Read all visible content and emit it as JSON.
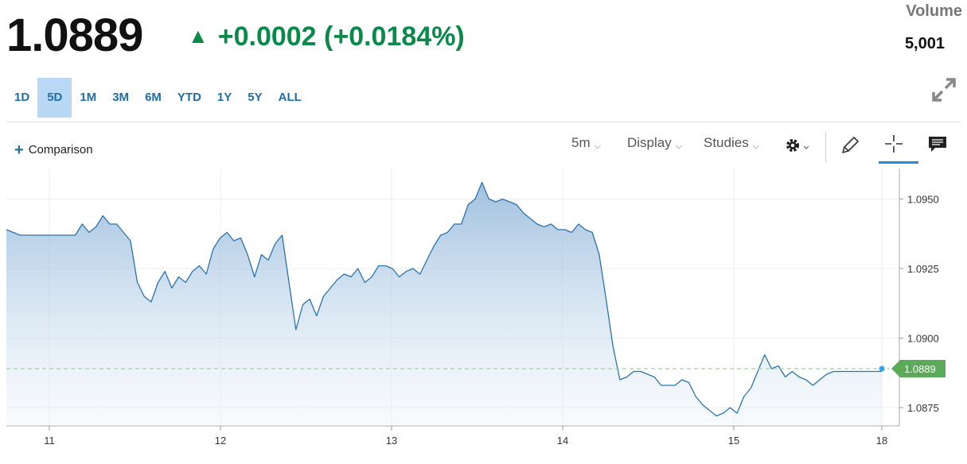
{
  "quote": {
    "price": "1.0889",
    "change": "+0.0002 (+0.0184%)",
    "volume_label": "Volume",
    "volume_value": "5,001"
  },
  "ranges": [
    "1D",
    "5D",
    "1M",
    "3M",
    "6M",
    "YTD",
    "1Y",
    "5Y",
    "ALL"
  ],
  "active_range": "5D",
  "toolbar": {
    "comparison_label": "Comparison",
    "interval_label": "5m",
    "display_label": "Display",
    "studies_label": "Studies"
  },
  "icons": [
    "expand-icon",
    "chevron-down-icon",
    "gear-icon",
    "pencil-icon",
    "crosshair-icon",
    "comment-icon",
    "plus-icon",
    "up-arrow-icon"
  ],
  "colors": {
    "line": "#2874b0",
    "positive": "#0a8a4a",
    "tag": "#5aaa5a",
    "active_range_bg": "#b9d8f5"
  },
  "chart_data": {
    "type": "area",
    "x_tick_labels": [
      "11",
      "12",
      "13",
      "14",
      "15",
      "18"
    ],
    "y_tick_labels": [
      "1.0950",
      "1.0925",
      "1.0900",
      "1.0875"
    ],
    "ylim": [
      1.0869,
      1.0961
    ],
    "last_value_label": "1.0889",
    "grid": true,
    "series": [
      {
        "points": [
          [
            0,
            1.0939
          ],
          [
            1,
            1.0938
          ],
          [
            2,
            1.0937
          ],
          [
            3,
            1.0937
          ],
          [
            4,
            1.0937
          ],
          [
            5,
            1.0937
          ],
          [
            6,
            1.0937
          ],
          [
            7,
            1.0937
          ],
          [
            8,
            1.0937
          ],
          [
            9,
            1.0937
          ],
          [
            10,
            1.0937
          ],
          [
            11,
            1.0941
          ],
          [
            12,
            1.0938
          ],
          [
            13,
            1.094
          ],
          [
            14,
            1.0944
          ],
          [
            15,
            1.0941
          ],
          [
            16,
            1.0941
          ],
          [
            17,
            1.0938
          ],
          [
            18,
            1.0935
          ],
          [
            19,
            1.092
          ],
          [
            20,
            1.0915
          ],
          [
            21,
            1.0913
          ],
          [
            22,
            1.092
          ],
          [
            23,
            1.0924
          ],
          [
            24,
            1.0918
          ],
          [
            25,
            1.0922
          ],
          [
            26,
            1.092
          ],
          [
            27,
            1.0924
          ],
          [
            28,
            1.0926
          ],
          [
            29,
            1.0923
          ],
          [
            30,
            1.0932
          ],
          [
            31,
            1.0936
          ],
          [
            32,
            1.0938
          ],
          [
            33,
            1.0935
          ],
          [
            34,
            1.0936
          ],
          [
            35,
            1.093
          ],
          [
            36,
            1.0922
          ],
          [
            37,
            1.093
          ],
          [
            38,
            1.0928
          ],
          [
            39,
            1.0934
          ],
          [
            40,
            1.0937
          ],
          [
            41,
            1.092
          ],
          [
            42,
            1.0903
          ],
          [
            43,
            1.0912
          ],
          [
            44,
            1.0914
          ],
          [
            45,
            1.0908
          ],
          [
            46,
            1.0915
          ],
          [
            47,
            1.0918
          ],
          [
            48,
            1.0921
          ],
          [
            49,
            1.0923
          ],
          [
            50,
            1.0922
          ],
          [
            51,
            1.0925
          ],
          [
            52,
            1.092
          ],
          [
            53,
            1.0922
          ],
          [
            54,
            1.0926
          ],
          [
            55,
            1.0926
          ],
          [
            56,
            1.0925
          ],
          [
            57,
            1.0922
          ],
          [
            58,
            1.0924
          ],
          [
            59,
            1.0925
          ],
          [
            60,
            1.0923
          ],
          [
            61,
            1.0928
          ],
          [
            62,
            1.0933
          ],
          [
            63,
            1.0937
          ],
          [
            64,
            1.0938
          ],
          [
            65,
            1.0941
          ],
          [
            66,
            1.0941
          ],
          [
            67,
            1.0948
          ],
          [
            68,
            1.095
          ],
          [
            69,
            1.0956
          ],
          [
            70,
            1.095
          ],
          [
            71,
            1.0949
          ],
          [
            72,
            1.095
          ],
          [
            73,
            1.0949
          ],
          [
            74,
            1.0948
          ],
          [
            75,
            1.0945
          ],
          [
            76,
            1.0943
          ],
          [
            77,
            1.0941
          ],
          [
            78,
            1.094
          ],
          [
            79,
            1.0941
          ],
          [
            80,
            1.0939
          ],
          [
            81,
            1.0939
          ],
          [
            82,
            1.0938
          ],
          [
            83,
            1.0941
          ],
          [
            84,
            1.0939
          ],
          [
            85,
            1.0938
          ],
          [
            86,
            1.093
          ],
          [
            87,
            1.0914
          ],
          [
            88,
            1.0897
          ],
          [
            89,
            1.0885
          ],
          [
            90,
            1.0886
          ],
          [
            91,
            1.0888
          ],
          [
            92,
            1.0888
          ],
          [
            93,
            1.0887
          ],
          [
            94,
            1.0886
          ],
          [
            95,
            1.0883
          ],
          [
            96,
            1.0883
          ],
          [
            97,
            1.0883
          ],
          [
            98,
            1.0885
          ],
          [
            99,
            1.0884
          ],
          [
            100,
            1.0879
          ],
          [
            101,
            1.0876
          ],
          [
            102,
            1.0874
          ],
          [
            103,
            1.0872
          ],
          [
            104,
            1.0873
          ],
          [
            105,
            1.0875
          ],
          [
            106,
            1.0873
          ],
          [
            107,
            1.0879
          ],
          [
            108,
            1.0882
          ],
          [
            109,
            1.0888
          ],
          [
            110,
            1.0894
          ],
          [
            111,
            1.0889
          ],
          [
            112,
            1.089
          ],
          [
            113,
            1.0886
          ],
          [
            114,
            1.0888
          ],
          [
            115,
            1.0886
          ],
          [
            116,
            1.0885
          ],
          [
            117,
            1.0883
          ],
          [
            118,
            1.0885
          ],
          [
            119,
            1.0887
          ],
          [
            120,
            1.0888
          ],
          [
            121,
            1.0888
          ],
          [
            122,
            1.0888
          ],
          [
            123,
            1.0888
          ],
          [
            124,
            1.0888
          ],
          [
            125,
            1.0888
          ],
          [
            126,
            1.0888
          ],
          [
            127,
            1.0888
          ]
        ]
      }
    ]
  }
}
